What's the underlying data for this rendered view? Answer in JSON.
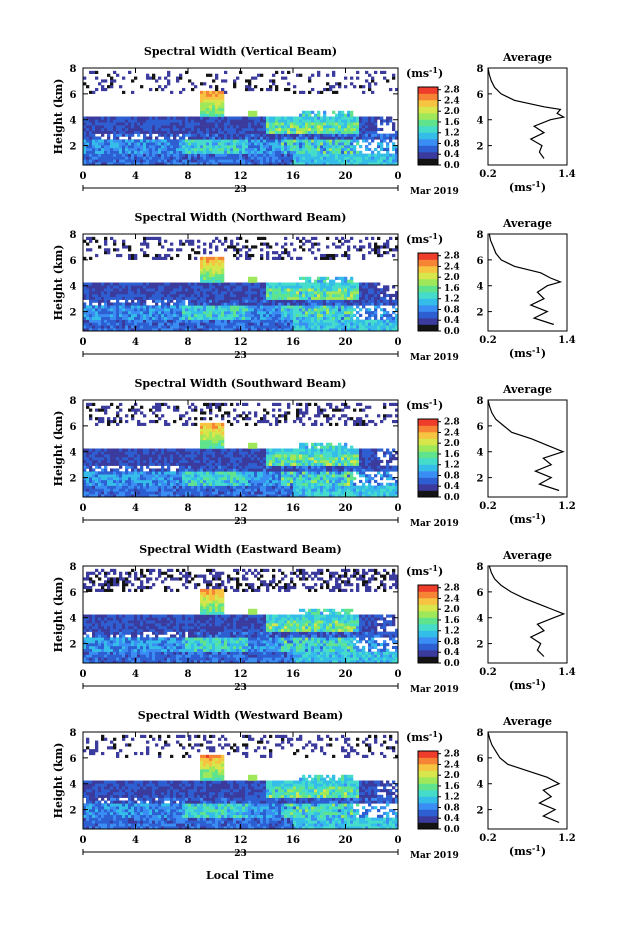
{
  "figure": {
    "date_label": "Mar 2019",
    "day_label": "23",
    "xlabel": "Local Time",
    "colorbar_unit": "(ms-1)",
    "avg_title": "Average",
    "avg_unit": "(ms-1)"
  },
  "colors": {
    "colormap": [
      "#141414",
      "#3b3b9e",
      "#2d5fd2",
      "#3a8df2",
      "#34bde8",
      "#46dccb",
      "#5fe38c",
      "#9fe85a",
      "#d7e64a",
      "#f6c441",
      "#f78434",
      "#ef3d2b"
    ]
  },
  "chart_data": [
    {
      "type": "heatmap",
      "title": "Spectral Width (Vertical Beam)",
      "xlabel": "Local Time",
      "ylabel": "Height (km)",
      "xlim": [
        0,
        24
      ],
      "ylim": [
        0.5,
        8
      ],
      "x_ticks": [
        "0",
        "4",
        "8",
        "12",
        "16",
        "20",
        "0"
      ],
      "y_ticks": [
        "2",
        "4",
        "6",
        "8"
      ],
      "colorbar_ticks": [
        "0.0",
        "0.4",
        "0.8",
        "1.2",
        "1.6",
        "2.0",
        "2.4",
        "2.8"
      ],
      "colorbar_range": [
        0,
        2.9
      ],
      "average_profile": {
        "xlim": [
          0.2,
          1.4
        ],
        "x_ticks": [
          "0.2",
          "1.4"
        ],
        "ylim": [
          0.5,
          8
        ],
        "y_ticks": [
          "2",
          "4",
          "6",
          "8"
        ],
        "height": [
          1.0,
          1.5,
          2.0,
          2.5,
          3.0,
          3.5,
          4.0,
          4.2,
          4.5,
          4.8,
          5.0,
          5.5,
          6.0,
          6.5,
          7.0,
          7.5,
          8.0
        ],
        "width": [
          1.05,
          0.98,
          1.02,
          0.85,
          1.05,
          0.9,
          1.15,
          1.35,
          1.25,
          1.3,
          1.05,
          0.6,
          0.4,
          0.3,
          0.25,
          0.22,
          0.2
        ]
      }
    },
    {
      "type": "heatmap",
      "title": "Spectral Width (Northward Beam)",
      "xlabel": "Local Time",
      "ylabel": "Height (km)",
      "xlim": [
        0,
        24
      ],
      "ylim": [
        0.5,
        8
      ],
      "x_ticks": [
        "0",
        "4",
        "8",
        "12",
        "16",
        "20",
        "0"
      ],
      "y_ticks": [
        "2",
        "4",
        "6",
        "8"
      ],
      "colorbar_ticks": [
        "0.0",
        "0.4",
        "0.8",
        "1.2",
        "1.6",
        "2.0",
        "2.4",
        "2.8"
      ],
      "colorbar_range": [
        0,
        2.9
      ],
      "average_profile": {
        "xlim": [
          0.2,
          1.4
        ],
        "x_ticks": [
          "0.2",
          "1.4"
        ],
        "ylim": [
          0.5,
          8
        ],
        "y_ticks": [
          "2",
          "4",
          "6",
          "8"
        ],
        "height": [
          1.0,
          1.5,
          2.0,
          2.5,
          3.0,
          3.5,
          4.0,
          4.3,
          4.6,
          5.0,
          5.5,
          6.0,
          6.5,
          7.0,
          7.5,
          8.0
        ],
        "width": [
          1.2,
          0.9,
          1.1,
          0.85,
          1.05,
          0.95,
          1.1,
          1.3,
          1.15,
          1.0,
          0.6,
          0.4,
          0.32,
          0.28,
          0.24,
          0.22
        ]
      }
    },
    {
      "type": "heatmap",
      "title": "Spectral Width (Southward Beam)",
      "xlabel": "Local Time",
      "ylabel": "Height (km)",
      "xlim": [
        0,
        24
      ],
      "ylim": [
        0.5,
        8
      ],
      "x_ticks": [
        "0",
        "4",
        "8",
        "12",
        "16",
        "20",
        "0"
      ],
      "y_ticks": [
        "2",
        "4",
        "6",
        "8"
      ],
      "colorbar_ticks": [
        "0.0",
        "0.4",
        "0.8",
        "1.2",
        "1.6",
        "2.0",
        "2.4",
        "2.8"
      ],
      "colorbar_range": [
        0,
        2.9
      ],
      "average_profile": {
        "xlim": [
          0.2,
          1.2
        ],
        "x_ticks": [
          "0.2",
          "1.2"
        ],
        "ylim": [
          0.5,
          8
        ],
        "y_ticks": [
          "2",
          "4",
          "6",
          "8"
        ],
        "height": [
          1.0,
          1.5,
          2.0,
          2.5,
          3.0,
          3.5,
          4.0,
          4.5,
          5.0,
          5.5,
          6.0,
          6.5,
          7.0,
          7.5,
          8.0
        ],
        "width": [
          1.1,
          0.85,
          1.0,
          0.8,
          1.0,
          0.9,
          1.15,
          0.95,
          0.75,
          0.5,
          0.4,
          0.3,
          0.25,
          0.22,
          0.2
        ]
      }
    },
    {
      "type": "heatmap",
      "title": "Spectral Width (Eastward Beam)",
      "xlabel": "Local Time",
      "ylabel": "Height (km)",
      "xlim": [
        0,
        24
      ],
      "ylim": [
        0.5,
        8
      ],
      "x_ticks": [
        "0",
        "4",
        "8",
        "12",
        "16",
        "20",
        "0"
      ],
      "y_ticks": [
        "2",
        "4",
        "6",
        "8"
      ],
      "colorbar_ticks": [
        "0.0",
        "0.4",
        "0.8",
        "1.2",
        "1.6",
        "2.0",
        "2.4",
        "2.8"
      ],
      "colorbar_range": [
        0,
        2.9
      ],
      "average_profile": {
        "xlim": [
          0.2,
          1.4
        ],
        "x_ticks": [
          "0.2",
          "1.4"
        ],
        "ylim": [
          0.5,
          8
        ],
        "y_ticks": [
          "2",
          "4",
          "6",
          "8"
        ],
        "height": [
          1.0,
          1.5,
          2.0,
          2.5,
          3.0,
          3.5,
          4.0,
          4.3,
          4.6,
          5.0,
          5.5,
          6.0,
          6.5,
          7.0,
          7.5,
          8.0
        ],
        "width": [
          1.05,
          0.95,
          1.0,
          0.85,
          1.05,
          0.95,
          1.2,
          1.35,
          1.2,
          1.0,
          0.75,
          0.55,
          0.4,
          0.3,
          0.25,
          0.22
        ]
      }
    },
    {
      "type": "heatmap",
      "title": "Spectral Width (Westward Beam)",
      "xlabel": "Local Time",
      "ylabel": "Height (km)",
      "xlim": [
        0,
        24
      ],
      "ylim": [
        0.5,
        8
      ],
      "x_ticks": [
        "0",
        "4",
        "8",
        "12",
        "16",
        "20",
        "0"
      ],
      "y_ticks": [
        "2",
        "4",
        "6",
        "8"
      ],
      "colorbar_ticks": [
        "0.0",
        "0.4",
        "0.8",
        "1.2",
        "1.6",
        "2.0",
        "2.4",
        "2.8"
      ],
      "colorbar_range": [
        0,
        2.9
      ],
      "average_profile": {
        "xlim": [
          0.2,
          1.2
        ],
        "x_ticks": [
          "0.2",
          "1.2"
        ],
        "ylim": [
          0.5,
          8
        ],
        "y_ticks": [
          "2",
          "4",
          "6",
          "8"
        ],
        "height": [
          1.0,
          1.5,
          2.0,
          2.5,
          3.0,
          3.5,
          4.0,
          4.5,
          5.0,
          5.5,
          6.0,
          6.5,
          7.0,
          7.5,
          8.0
        ],
        "width": [
          1.1,
          0.9,
          1.05,
          0.85,
          1.0,
          0.9,
          1.1,
          0.95,
          0.7,
          0.45,
          0.35,
          0.3,
          0.25,
          0.22,
          0.2
        ]
      }
    }
  ]
}
